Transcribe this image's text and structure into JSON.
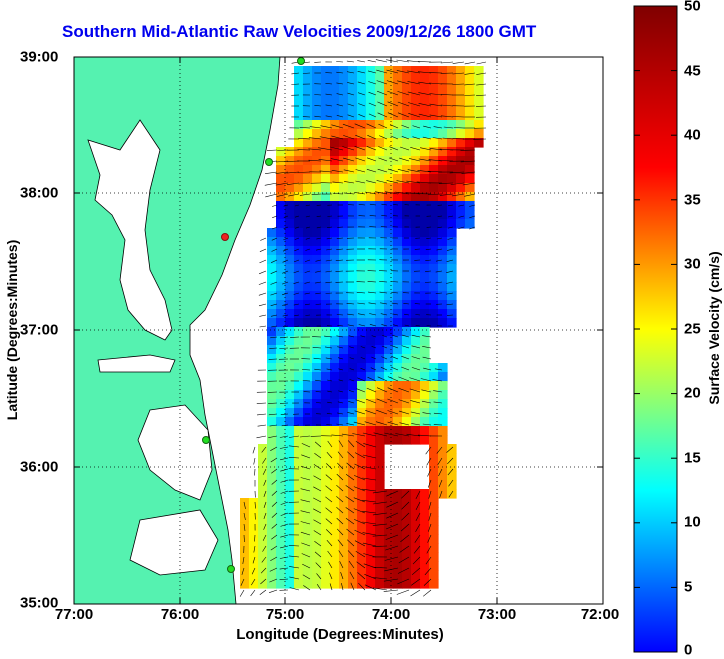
{
  "map": {
    "title": "Southern Mid-Atlantic Raw Velocities 2009/12/26 1800 GMT",
    "xlabel": "Longitude (Degrees:Minutes)",
    "ylabel": "Latitude (Degrees:Minutes)",
    "x_ticks": [
      "77:00",
      "76:00",
      "75:00",
      "74:00",
      "73:00",
      "72:00"
    ],
    "y_ticks": [
      "39:00",
      "38:00",
      "37:00",
      "36:00",
      "35:00"
    ],
    "lon_range": [
      -77,
      -72
    ],
    "lat_range": [
      35,
      39
    ],
    "grid": "dotted"
  },
  "colorbar": {
    "label": "Surface Velocity (cm/s)",
    "ticks": [
      "50",
      "45",
      "40",
      "35",
      "30",
      "25",
      "20",
      "15",
      "10",
      "5",
      "0"
    ],
    "range": [
      0,
      50
    ],
    "colormap": "jet"
  },
  "colors": {
    "land": "#55f2b0",
    "title": "#0000ee",
    "station": "#22dd22",
    "station_offline": "#ee2222"
  }
}
